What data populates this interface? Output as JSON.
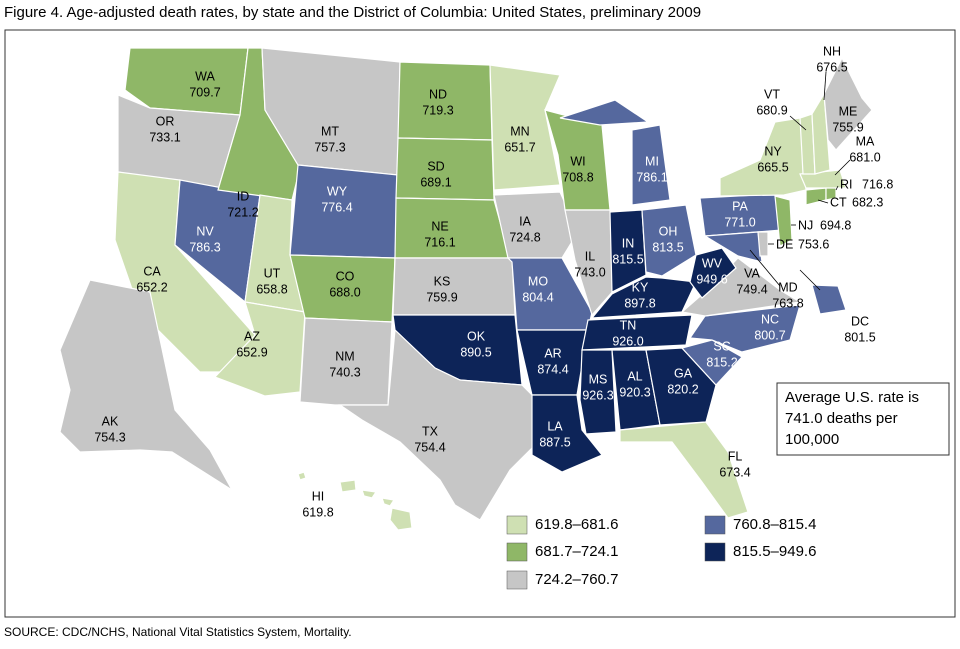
{
  "title": "Figure 4. Age-adjusted death rates, by state and the District of Columbia: United States, preliminary 2009",
  "source": "SOURCE: CDC/NCHS, National Vital Statistics System, Mortality.",
  "note": [
    "Average U.S. rate is",
    "741.0 deaths per",
    "100,000"
  ],
  "legend": [
    {
      "label": "619.8–681.6",
      "min": 619.8,
      "max": 681.6,
      "color": "#cfe0b3"
    },
    {
      "label": "681.7–724.1",
      "min": 681.7,
      "max": 724.1,
      "color": "#8fb767"
    },
    {
      "label": "724.2–760.7",
      "min": 724.2,
      "max": 760.7,
      "color": "#c6c6c6"
    },
    {
      "label": "760.8–815.4",
      "min": 760.8,
      "max": 815.4,
      "color": "#55689e"
    },
    {
      "label": "815.5–949.6",
      "min": 815.5,
      "max": 949.6,
      "color": "#0d2458"
    }
  ],
  "states": [
    {
      "abbr": "WA",
      "value": 709.7
    },
    {
      "abbr": "OR",
      "value": 733.1
    },
    {
      "abbr": "CA",
      "value": 652.2
    },
    {
      "abbr": "NV",
      "value": 786.3
    },
    {
      "abbr": "ID",
      "value": 721.2
    },
    {
      "abbr": "MT",
      "value": 757.3
    },
    {
      "abbr": "WY",
      "value": 776.4
    },
    {
      "abbr": "UT",
      "value": 658.8
    },
    {
      "abbr": "AZ",
      "value": 652.9
    },
    {
      "abbr": "CO",
      "value": 688.0,
      "value_label": "688.0"
    },
    {
      "abbr": "NM",
      "value": 740.3
    },
    {
      "abbr": "ND",
      "value": 719.3
    },
    {
      "abbr": "SD",
      "value": 689.1
    },
    {
      "abbr": "NE",
      "value": 716.1
    },
    {
      "abbr": "KS",
      "value": 759.9
    },
    {
      "abbr": "OK",
      "value": 890.5
    },
    {
      "abbr": "TX",
      "value": 754.4
    },
    {
      "abbr": "MN",
      "value": 651.7
    },
    {
      "abbr": "IA",
      "value": 724.8
    },
    {
      "abbr": "MO",
      "value": 804.4
    },
    {
      "abbr": "AR",
      "value": 874.4
    },
    {
      "abbr": "LA",
      "value": 887.5
    },
    {
      "abbr": "WI",
      "value": 708.8
    },
    {
      "abbr": "IL",
      "value": 743.0,
      "value_label": "743.0"
    },
    {
      "abbr": "MI",
      "value": 786.1
    },
    {
      "abbr": "IN",
      "value": 815.5
    },
    {
      "abbr": "OH",
      "value": 813.5
    },
    {
      "abbr": "KY",
      "value": 897.8
    },
    {
      "abbr": "TN",
      "value": 926.0,
      "value_label": "926.0"
    },
    {
      "abbr": "MS",
      "value": 926.3
    },
    {
      "abbr": "AL",
      "value": 920.3
    },
    {
      "abbr": "GA",
      "value": 820.2
    },
    {
      "abbr": "FL",
      "value": 673.4
    },
    {
      "abbr": "SC",
      "value": 815.2
    },
    {
      "abbr": "NC",
      "value": 800.7
    },
    {
      "abbr": "VA",
      "value": 749.4
    },
    {
      "abbr": "WV",
      "value": 949.6
    },
    {
      "abbr": "PA",
      "value": 771.0,
      "value_label": "771.0"
    },
    {
      "abbr": "NY",
      "value": 665.5
    },
    {
      "abbr": "MD",
      "value": 763.8
    },
    {
      "abbr": "DE",
      "value": 753.6
    },
    {
      "abbr": "NJ",
      "value": 694.8
    },
    {
      "abbr": "CT",
      "value": 682.3
    },
    {
      "abbr": "RI",
      "value": 716.8
    },
    {
      "abbr": "MA",
      "value": 681.0,
      "value_label": "681.0"
    },
    {
      "abbr": "VT",
      "value": 680.9
    },
    {
      "abbr": "NH",
      "value": 676.5
    },
    {
      "abbr": "ME",
      "value": 755.9
    },
    {
      "abbr": "DC",
      "value": 801.5
    },
    {
      "abbr": "AK",
      "value": 754.3
    },
    {
      "abbr": "HI",
      "value": 619.8
    }
  ]
}
